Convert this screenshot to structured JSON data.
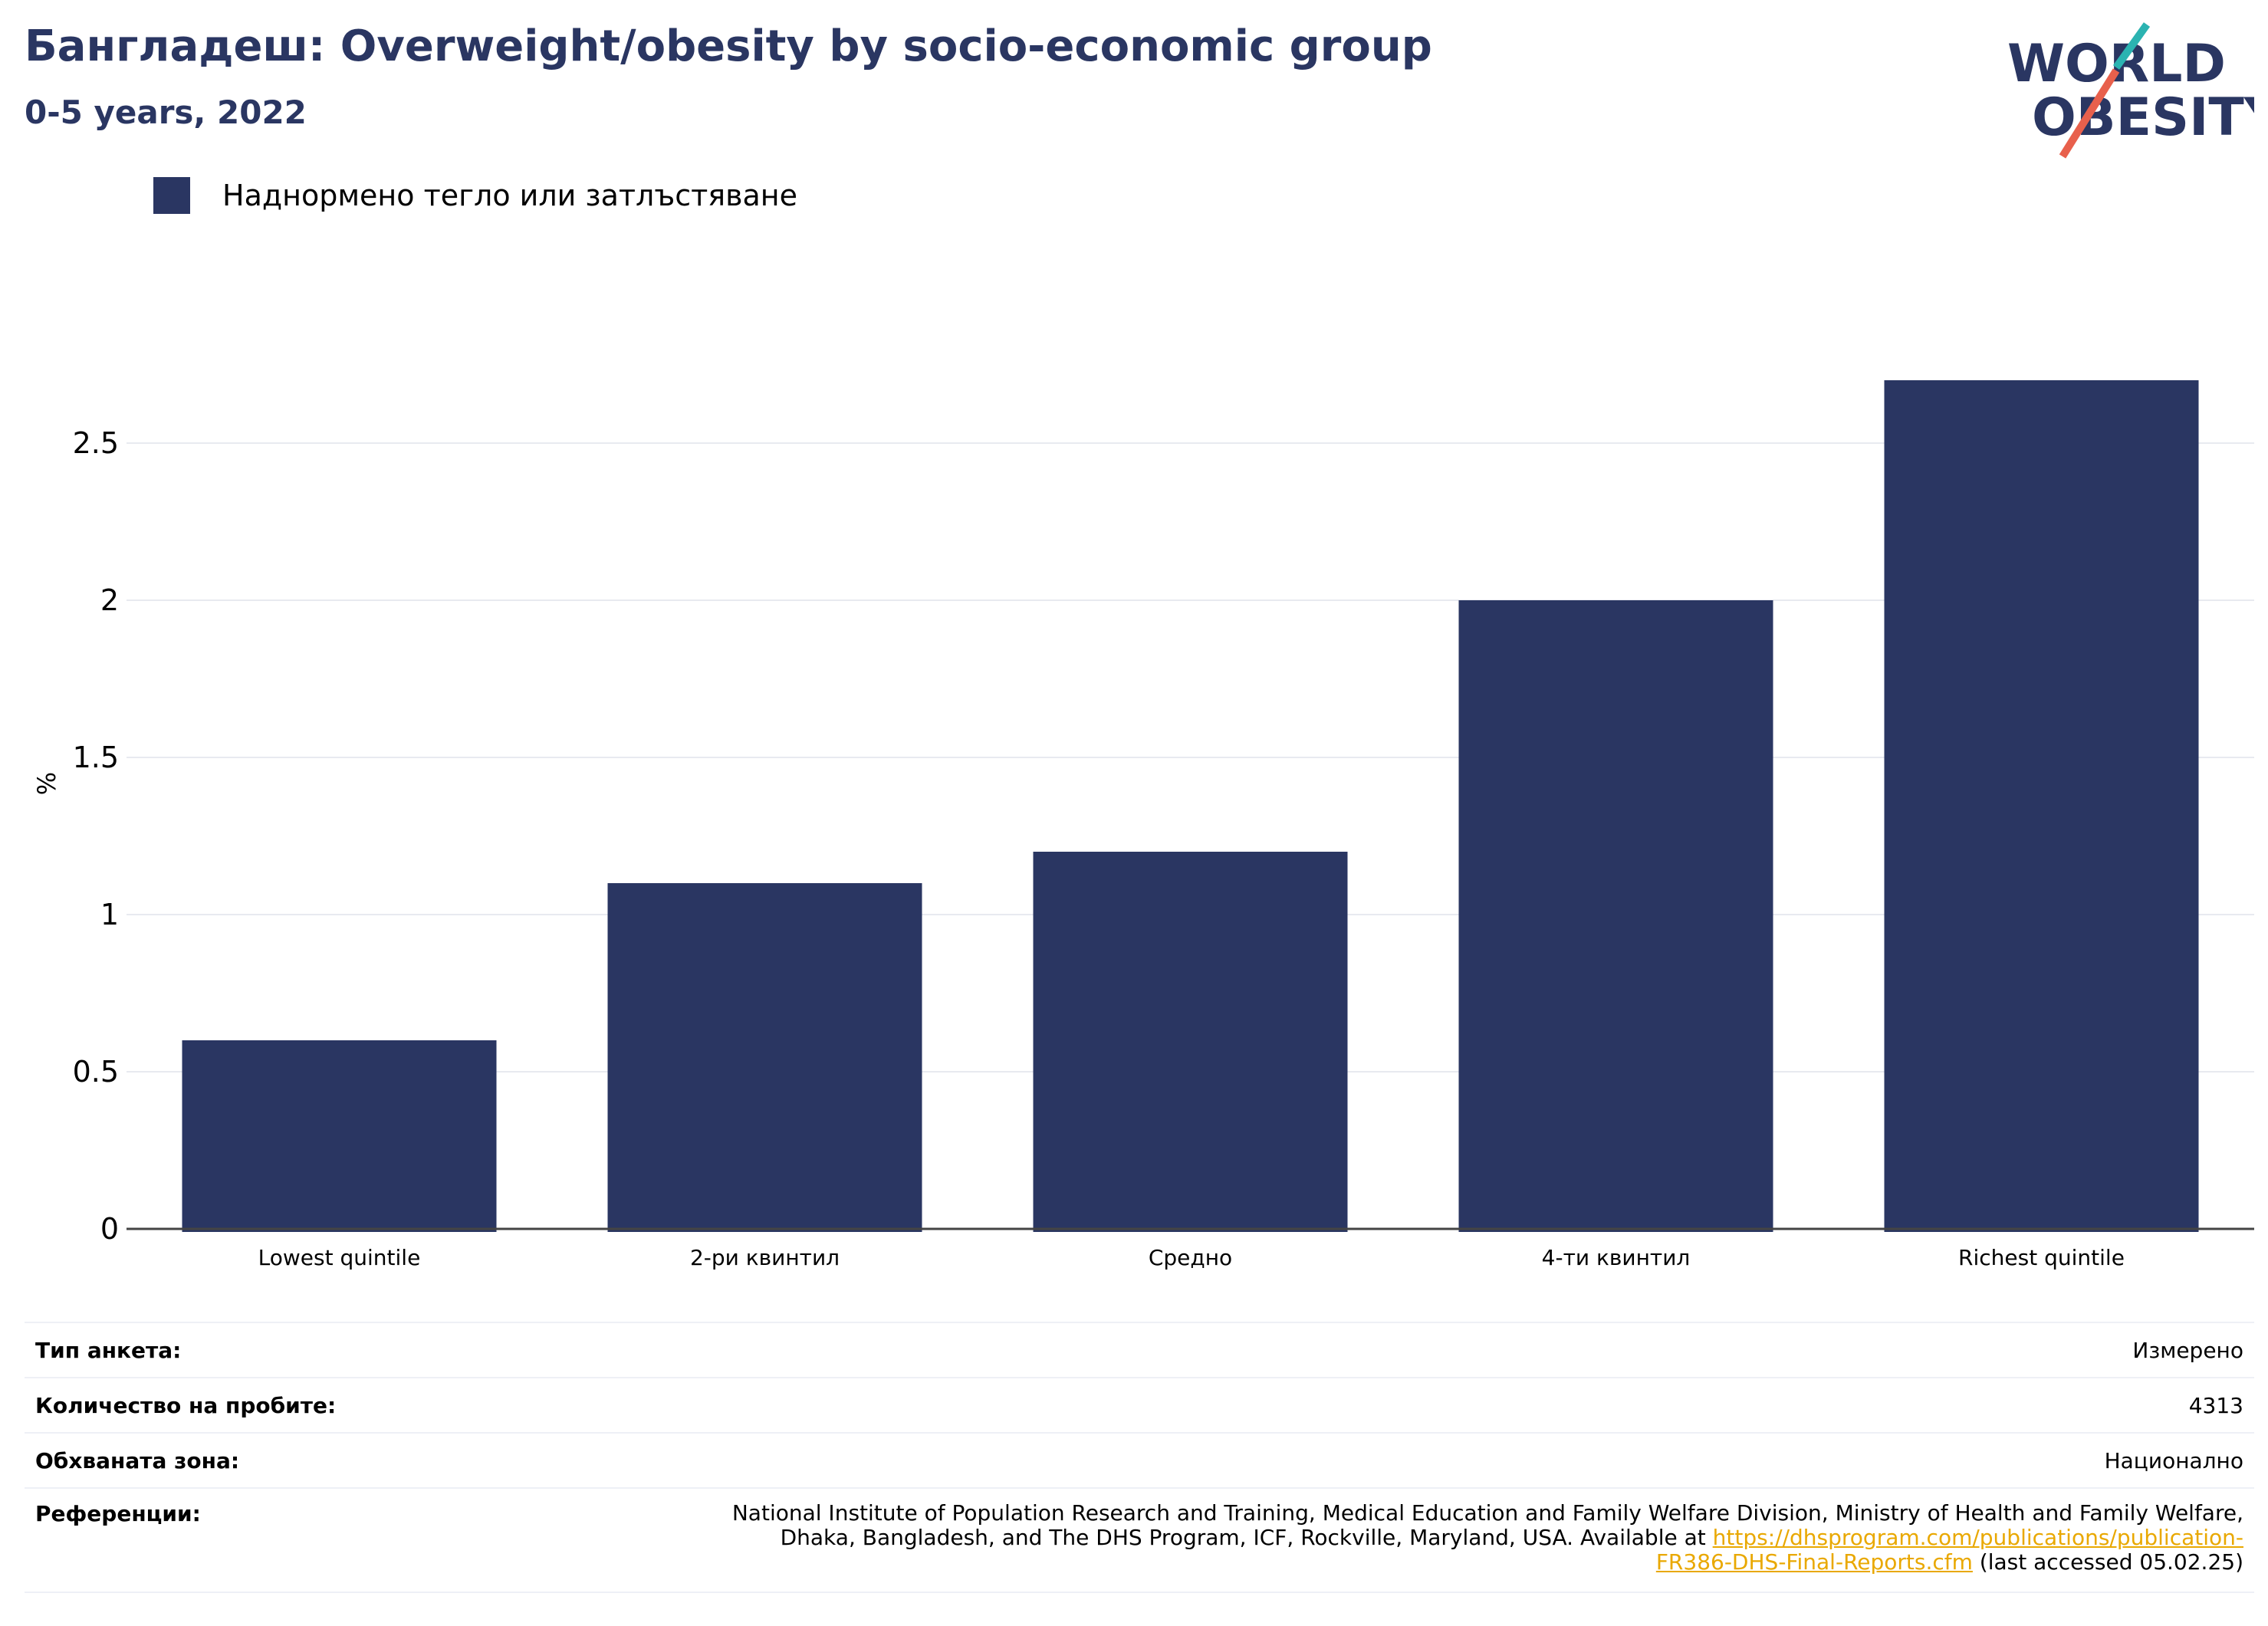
{
  "header": {
    "title": "Бангладеш: Overweight/obesity by socio-economic group",
    "subtitle": "0-5 years, 2022"
  },
  "logo": {
    "line1": "WORLD",
    "line2": "OBESITY"
  },
  "colors": {
    "bar": "#2a3662",
    "title": "#2a3662",
    "link": "#e9a800",
    "slash_teal": "#2bb3b1",
    "slash_red": "#e8604c"
  },
  "chart_data": {
    "type": "bar",
    "categories": [
      "Lowest quintile",
      "2-ри квинтил",
      "Средно",
      "4-ти квинтил",
      "Richest quintile"
    ],
    "series": [
      {
        "name": "Наднормено тегло или затлъстяване",
        "values": [
          0.6,
          1.1,
          1.2,
          2.0,
          2.7
        ]
      }
    ],
    "ylabel": "%",
    "ylim": [
      0,
      2.8
    ],
    "yticks": [
      0,
      0.5,
      1,
      1.5,
      2,
      2.5
    ],
    "ytick_labels": [
      "0",
      "0.5",
      "1",
      "1.5",
      "2",
      "2.5"
    ],
    "grid": true,
    "legend": "top-left"
  },
  "info": {
    "survey_type": {
      "label": "Тип анкета:",
      "value": "Измерено"
    },
    "sample_size": {
      "label": "Количество на пробите:",
      "value": "4313"
    },
    "area": {
      "label": "Обхваната зона:",
      "value": "Национално"
    },
    "references": {
      "label": "Референции:",
      "text_line1": "National Institute of Population Research and Training, Medical Education and Family Welfare Division, Ministry of Health and Family Welfare,",
      "text_line2": "Dhaka, Bangladesh, and The DHS Program, ICF, Rockville, Maryland, USA. Available at ",
      "link_part1": "https://dhsprogram.com/publications/publication-",
      "link_part2": "FR386-DHS-Final-Reports.cfm",
      "suffix": " (last accessed 05.02.25)"
    }
  }
}
